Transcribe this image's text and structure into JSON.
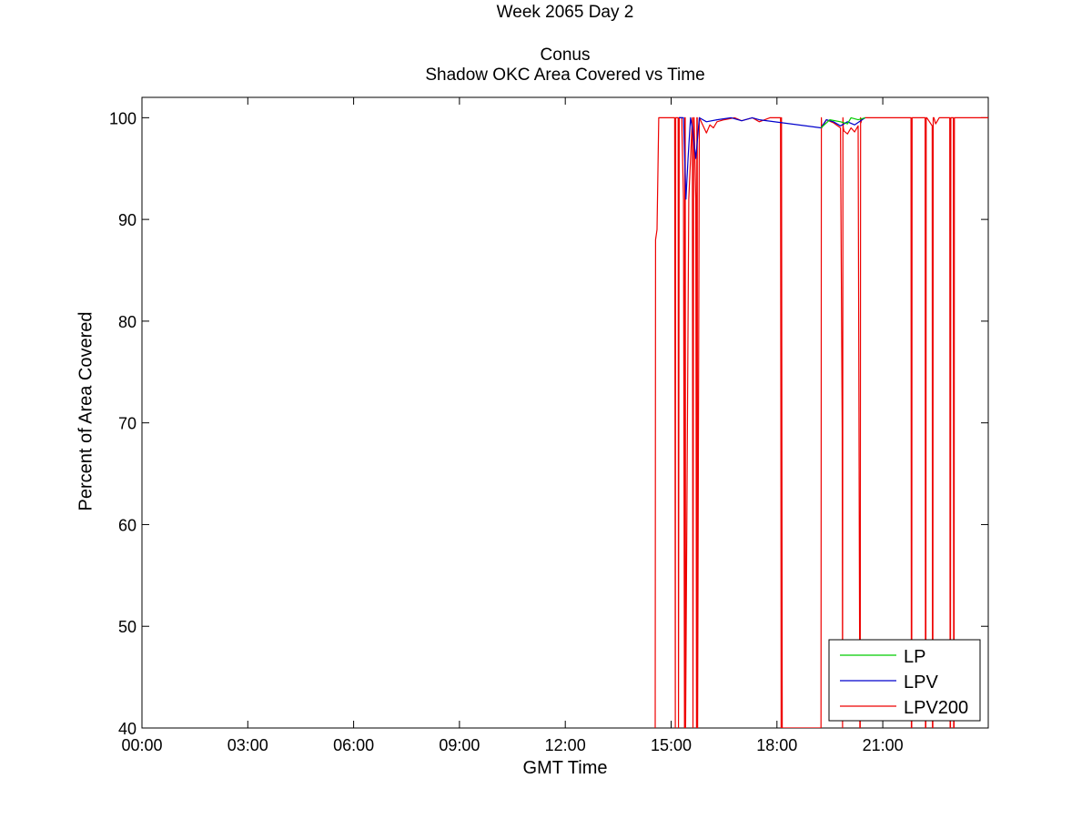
{
  "chart_data": {
    "type": "line",
    "title_lines": [
      "Week 2065 Day 2",
      "Conus",
      "Shadow OKC Area Covered vs Time"
    ],
    "xlabel": "GMT Time",
    "ylabel": "Percent of Area Covered",
    "xlim_hours": [
      0,
      23.99
    ],
    "ylim": [
      40,
      102
    ],
    "x_ticks": [
      {
        "hour": 0,
        "label": "00:00"
      },
      {
        "hour": 3,
        "label": "03:00"
      },
      {
        "hour": 6,
        "label": "06:00"
      },
      {
        "hour": 9,
        "label": "09:00"
      },
      {
        "hour": 12,
        "label": "12:00"
      },
      {
        "hour": 15,
        "label": "15:00"
      },
      {
        "hour": 18,
        "label": "18:00"
      },
      {
        "hour": 21,
        "label": "21:00"
      }
    ],
    "y_ticks": [
      40,
      50,
      60,
      70,
      80,
      90,
      100
    ],
    "grid": false,
    "legend_position": "bottom-right",
    "series": [
      {
        "name": "LP",
        "color": "#00cc00",
        "x": [
          19.25,
          19.5,
          19.8,
          20.0,
          20.1,
          20.3,
          20.5
        ],
        "y": [
          99.0,
          99.8,
          99.6,
          99.4,
          100,
          99.8,
          100
        ]
      },
      {
        "name": "LPV",
        "color": "#0000cc",
        "x": [
          15.22,
          15.35,
          15.42,
          15.48,
          15.55,
          15.6,
          15.7,
          15.8,
          16.0,
          16.3,
          16.7,
          17.0,
          17.3,
          17.5,
          19.25,
          19.4,
          19.6,
          19.8,
          20.0,
          20.2,
          20.5
        ],
        "y": [
          100,
          100,
          92,
          96,
          100,
          99,
          96,
          100,
          99.6,
          99.8,
          100,
          99.7,
          100,
          99.8,
          99,
          99.8,
          99.6,
          99.2,
          99.6,
          99.3,
          100
        ]
      },
      {
        "name": "LPV200",
        "color": "#ee0000",
        "x": [
          14.55,
          14.56,
          14.6,
          14.65,
          15.0,
          15.1,
          15.11,
          15.12,
          15.13,
          15.2,
          15.21,
          15.22,
          15.23,
          15.3,
          15.35,
          15.38,
          15.39,
          15.4,
          15.41,
          15.5,
          15.6,
          15.62,
          15.63,
          15.64,
          15.65,
          15.7,
          15.72,
          15.73,
          15.74,
          15.75,
          15.8,
          16.0,
          16.1,
          16.2,
          16.3,
          16.5,
          16.8,
          17.0,
          17.3,
          17.5,
          17.8,
          18.1,
          18.11,
          18.12,
          18.13,
          18.15,
          18.16,
          19.25,
          19.26,
          19.27,
          19.4,
          19.6,
          19.8,
          19.85,
          19.86,
          19.87,
          19.88,
          19.9,
          20.0,
          20.1,
          20.2,
          20.3,
          20.35,
          20.36,
          20.37,
          20.38,
          20.4,
          20.5,
          20.6,
          21.0,
          21.5,
          21.8,
          21.81,
          21.82,
          21.83,
          21.85,
          22.2,
          22.21,
          22.22,
          22.23,
          22.25,
          22.4,
          22.41,
          22.42,
          22.43,
          22.45,
          22.5,
          22.6,
          22.9,
          22.91,
          22.92,
          22.93,
          22.95,
          23.0,
          23.01,
          23.02,
          23.03,
          23.05,
          23.3,
          23.99
        ],
        "y": [
          40,
          88,
          89,
          100,
          100,
          100,
          70,
          40,
          100,
          100,
          40,
          70,
          100,
          100,
          92,
          40,
          100,
          100,
          40,
          92,
          100,
          40,
          70,
          100,
          100,
          92,
          40,
          100,
          100,
          40,
          100,
          98.5,
          99.3,
          99.0,
          99.6,
          99.8,
          100,
          99.7,
          100,
          99.6,
          100,
          100,
          70,
          40,
          100,
          40,
          40,
          40,
          100,
          99,
          99.8,
          99.5,
          99.0,
          69.5,
          40,
          100,
          99,
          98.7,
          98.4,
          99.0,
          98.6,
          99.2,
          40,
          40,
          100,
          99.5,
          99.8,
          100,
          100,
          100,
          100,
          100,
          40,
          40,
          100,
          100,
          100,
          40,
          40,
          100,
          100,
          99.2,
          40,
          40,
          100,
          100,
          99.4,
          100,
          100,
          40,
          40,
          100,
          100,
          100,
          40,
          40,
          100,
          100,
          100,
          100
        ]
      }
    ]
  }
}
